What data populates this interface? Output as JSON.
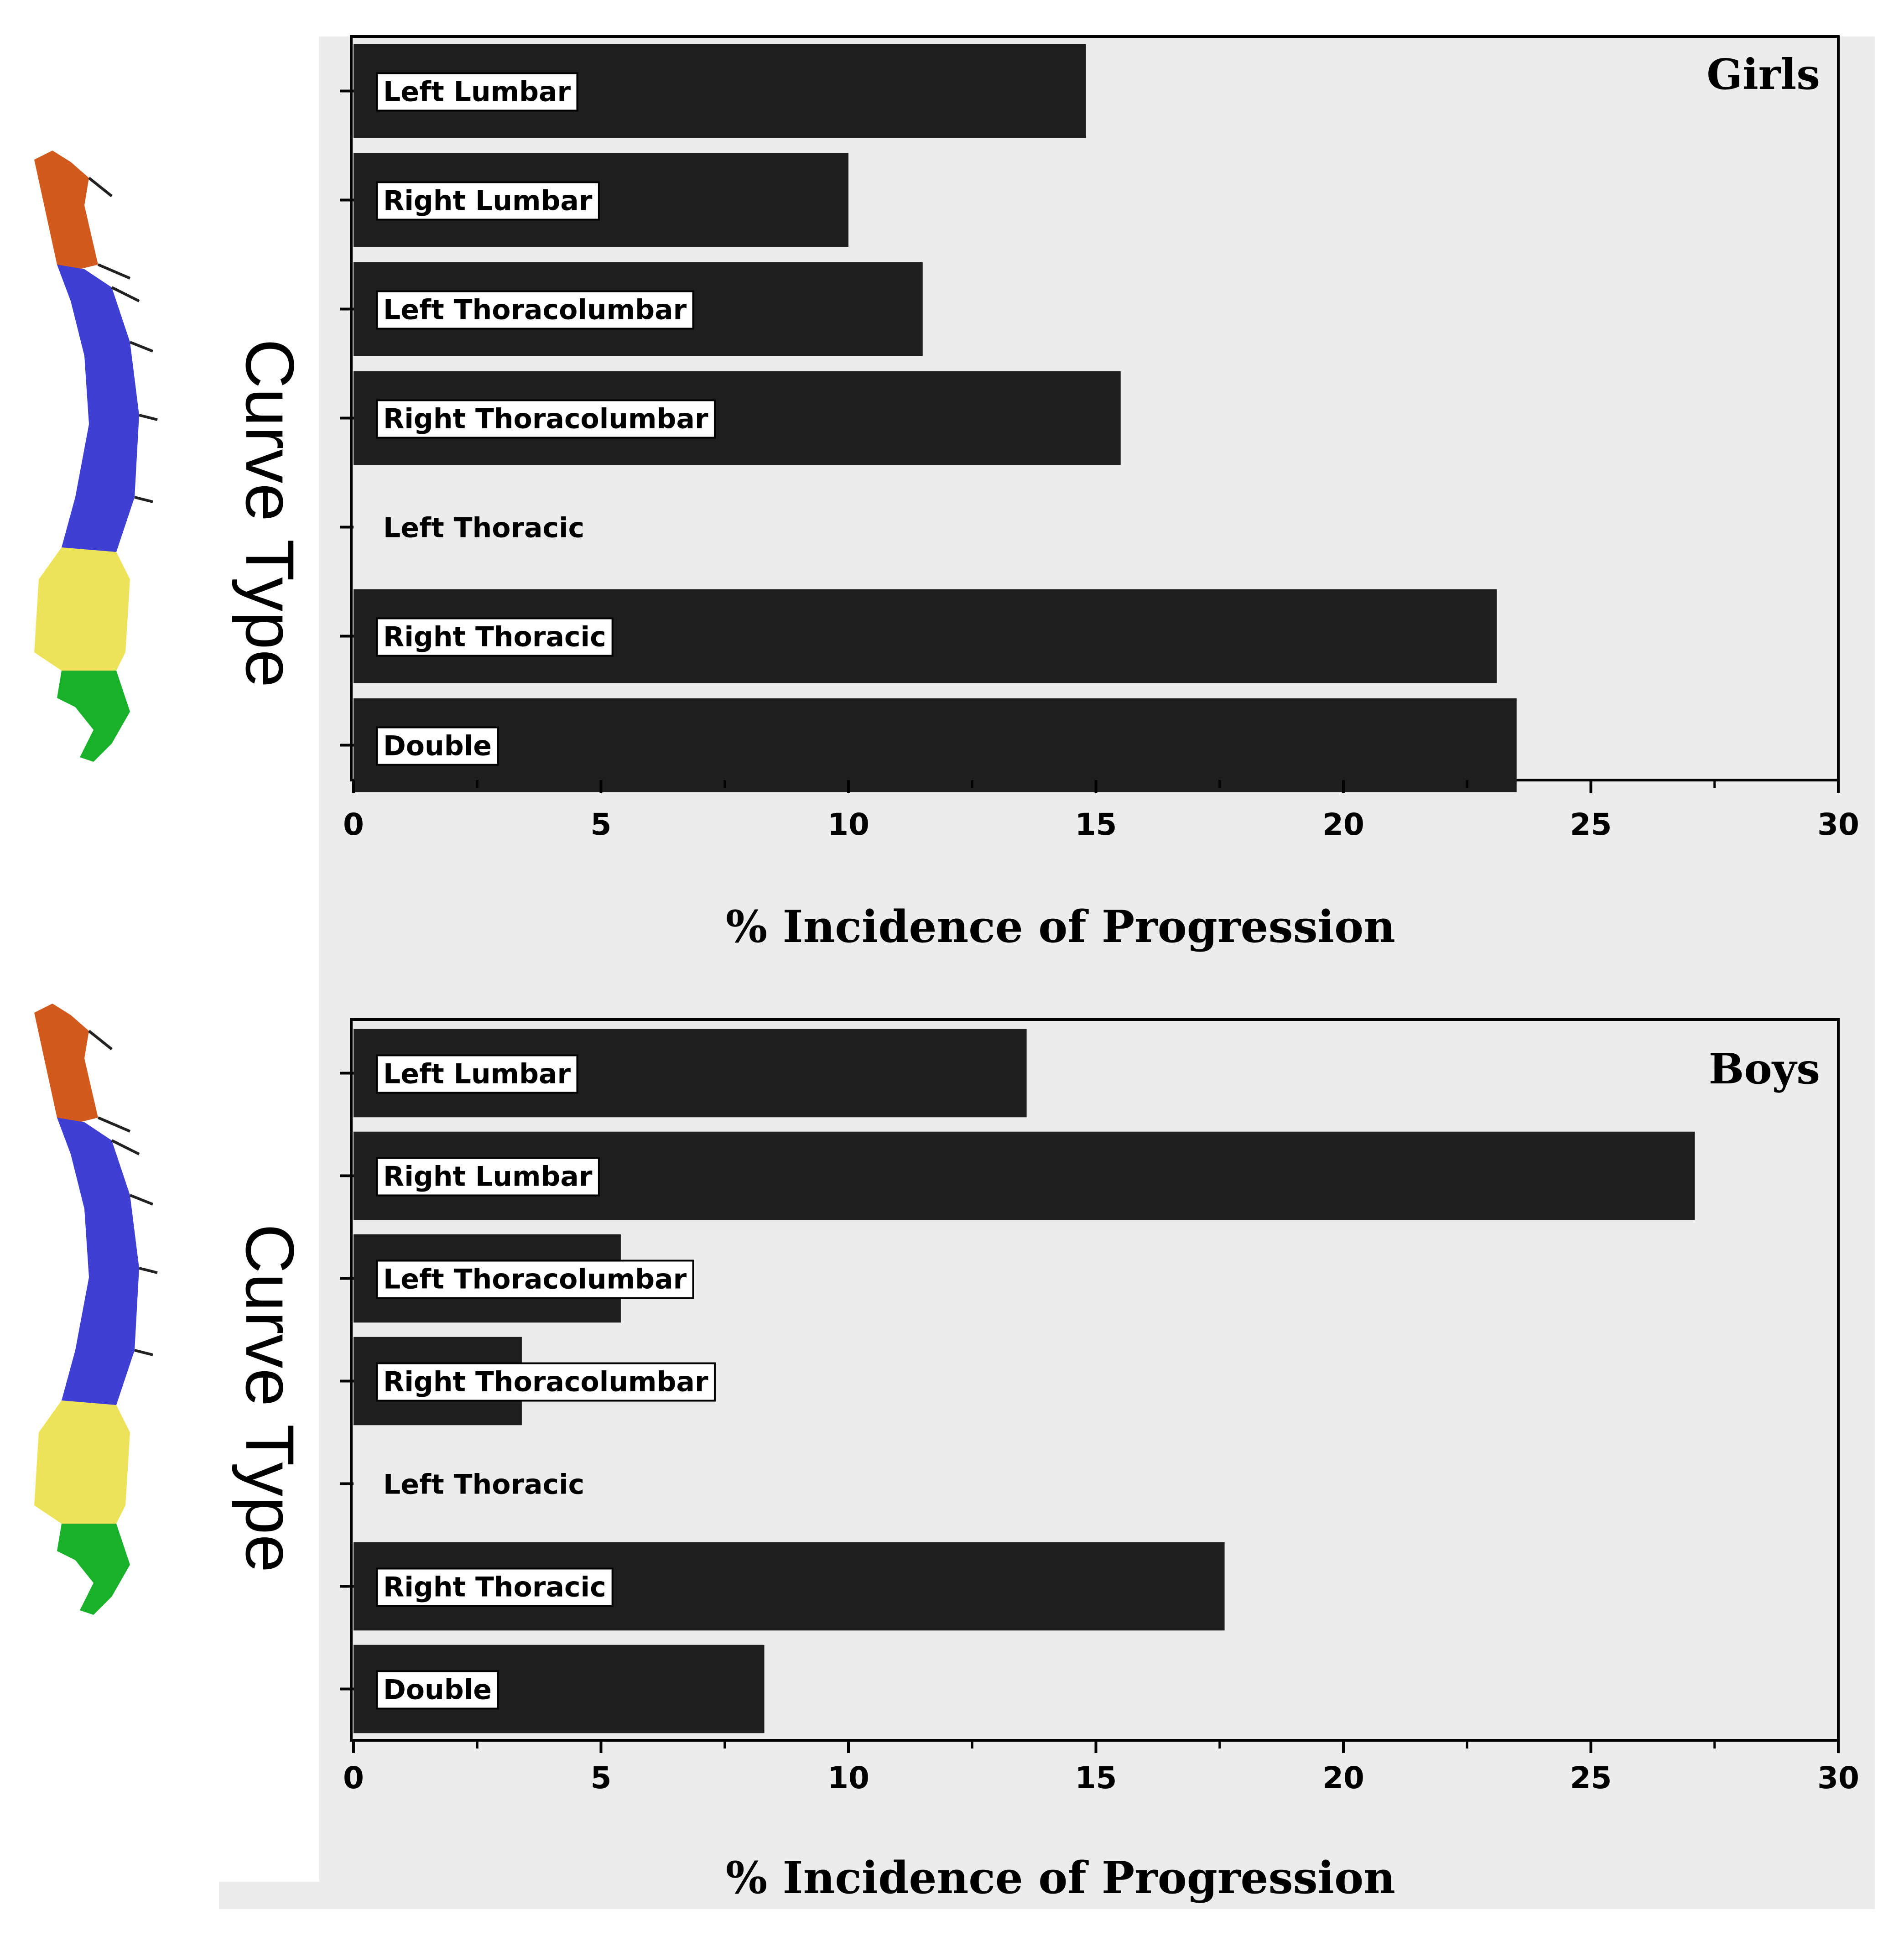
{
  "colors": {
    "background": "#ececec",
    "bar": "#1e1e1e",
    "spine_cervical": "#d35a1e",
    "spine_thoracic": "#3f3fd4",
    "spine_lumbar": "#ede35a",
    "spine_sacral": "#19b02a"
  },
  "icons": [
    "spine-illustration-icon",
    "spine-illustration-icon"
  ],
  "chart_data": [
    {
      "type": "bar",
      "orientation": "horizontal",
      "panel_label": "Girls",
      "ylabel": "Curve Type",
      "xlabel": "% Incidence of Progression",
      "xlim": [
        0,
        30
      ],
      "xticks": [
        "0",
        "5",
        "10",
        "15",
        "20",
        "25",
        "30"
      ],
      "categories": [
        "Left Lumbar",
        "Right Lumbar",
        "Left Thoracolumbar",
        "Right Thoracolumbar",
        "Left Thoracic",
        "Right Thoracic",
        "Double"
      ],
      "values": [
        14.8,
        10.0,
        11.5,
        15.5,
        0,
        23.1,
        23.5
      ]
    },
    {
      "type": "bar",
      "orientation": "horizontal",
      "panel_label": "Boys",
      "ylabel": "Curve Type",
      "xlabel": "% Incidence of Progression",
      "xlim": [
        0,
        30
      ],
      "xticks": [
        "0",
        "5",
        "10",
        "15",
        "20",
        "25",
        "30"
      ],
      "categories": [
        "Left Lumbar",
        "Right Lumbar",
        "Left Thoracolumbar",
        "Right Thoracolumbar",
        "Left Thoracic",
        "Right Thoracic",
        "Double"
      ],
      "values": [
        13.6,
        27.1,
        5.4,
        3.4,
        0,
        17.6,
        8.3
      ]
    }
  ]
}
